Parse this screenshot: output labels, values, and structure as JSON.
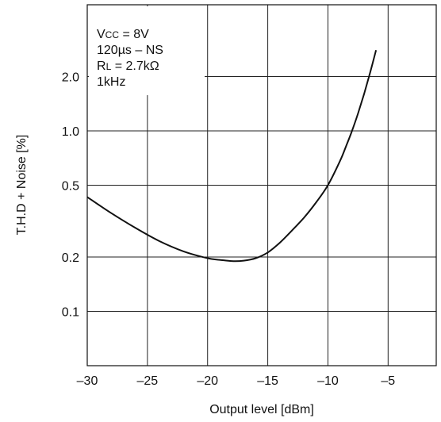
{
  "chart_data": {
    "type": "line",
    "xlabel": "Output level [dBm]",
    "ylabel": "T.H.D + Noise [%]",
    "xlim": [
      -30,
      -1
    ],
    "ylim": [
      0.05,
      5.0
    ],
    "yscale": "log",
    "grid": true,
    "xticks": [
      -30,
      -25,
      -20,
      -15,
      -10,
      -5
    ],
    "xtick_labels": [
      "–30",
      "–25",
      "–20",
      "–15",
      "–10",
      "–5"
    ],
    "yticks": [
      0.1,
      0.2,
      0.5,
      1.0,
      2.0
    ],
    "ytick_labels": [
      "0.1",
      "0.2",
      "0.5",
      "1.0",
      "2.0"
    ],
    "conditions": [
      "Vcc = 8V",
      "120µs – NS",
      "RL = 2.7kΩ",
      "1kHz"
    ],
    "series": [
      {
        "x": [
          -30,
          -28,
          -26,
          -24,
          -22,
          -20,
          -19,
          -18,
          -17,
          -16,
          -15,
          -14,
          -13,
          -12,
          -11,
          -10,
          -9,
          -8.5,
          -8,
          -7.5,
          -7,
          -6.5,
          -6
        ],
        "y": [
          0.43,
          0.35,
          0.29,
          0.245,
          0.215,
          0.197,
          0.193,
          0.19,
          0.191,
          0.197,
          0.212,
          0.24,
          0.28,
          0.33,
          0.4,
          0.5,
          0.68,
          0.82,
          1.0,
          1.25,
          1.6,
          2.1,
          2.8
        ]
      }
    ],
    "colors": {
      "line": "#111111",
      "grid": "#222222",
      "background": "#ffffff"
    }
  }
}
